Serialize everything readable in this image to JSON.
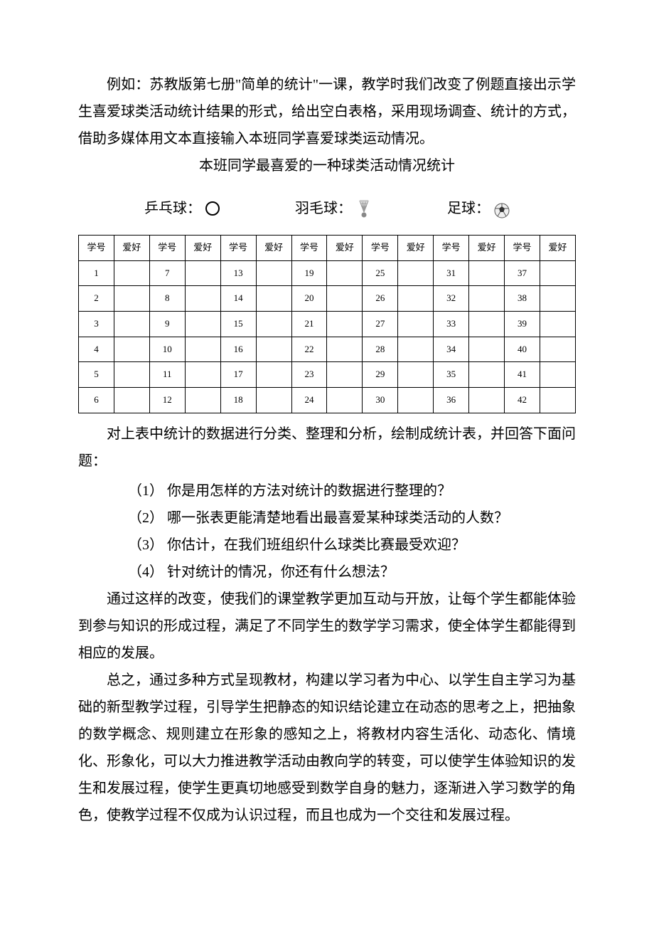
{
  "paragraphs": {
    "intro": "例如：苏教版第七册\"简单的统计\"一课，教学时我们改变了例题直接出示学生喜爱球类活动统计结果的形式，给出空白表格，采用现场调查、统计的方式，借助多媒体用文本直接输入本班同学喜爱球类运动情况。",
    "subtitle": "本班同学最喜爱的一种球类活动情况统计",
    "after_table": "对上表中统计的数据进行分类、整理和分析，绘制成统计表，并回答下面问题：",
    "conclusion1": "通过这样的改变，使我们的课堂教学更加互动与开放，让每个学生都能体验到参与知识的形成过程，满足了不同学生的数学学习需求，使全体学生都能得到相应的发展。",
    "conclusion2": "总之，通过多种方式呈现教材，构建以学习者为中心、以学生自主学习为基础的新型教学过程，引导学生把静态的知识结论建立在动态的思考之上，把抽象的数学概念、规则建立在形象的感知之上，将教材内容生活化、动态化、情境化、形象化，可以大力推进教学活动由教向学的转变，可以使学生体验知识的发生和发展过程，使学生更真切地感受到数学自身的魅力，逐渐进入学习数学的角色，使教学过程不仅成为认识过程，而且也成为一个交往和发展过程。"
  },
  "sports": {
    "pingpong": "乒乓球：",
    "badminton": "羽毛球：",
    "football": "足球："
  },
  "table": {
    "header_id": "学号",
    "header_hobby": "爱好",
    "columns": 7,
    "rows": 6,
    "start_numbers": [
      1,
      7,
      13,
      19,
      25,
      31,
      37
    ]
  },
  "questions": [
    "（1） 你是用怎样的方法对统计的数据进行整理的？",
    "（2） 哪一张表更能清楚地看出最喜爱某种球类活动的人数？",
    "（3） 你估计，在我们班组织什么球类比赛最受欢迎？",
    "（4） 针对统计的情况，你还有什么想法？"
  ],
  "colors": {
    "text": "#000000",
    "background": "#ffffff",
    "border": "#000000"
  }
}
